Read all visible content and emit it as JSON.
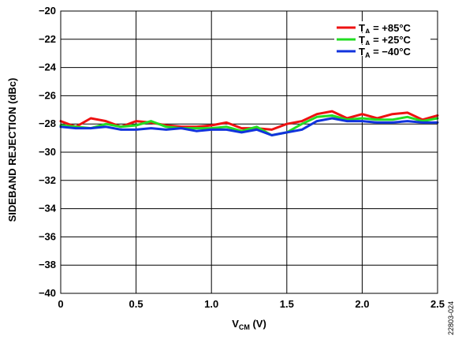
{
  "chart_data": {
    "type": "line",
    "xlabel_main": "V",
    "xlabel_sub": "CM",
    "xlabel_unit": " (V)",
    "ylabel": "SIDEBAND REJECTION (dBc)",
    "xlim": [
      0,
      2.5
    ],
    "ylim": [
      -40,
      -20
    ],
    "xticks": [
      0,
      0.5,
      1.0,
      1.5,
      2.0,
      2.5
    ],
    "xtick_labels": [
      "0",
      "0.5",
      "1.0",
      "1.5",
      "2.0",
      "2.5"
    ],
    "yticks": [
      -20,
      -22,
      -24,
      -26,
      -28,
      -30,
      -32,
      -34,
      -36,
      -38,
      -40
    ],
    "ytick_labels": [
      "−20",
      "−22",
      "−24",
      "−26",
      "−28",
      "−30",
      "−32",
      "−34",
      "−36",
      "−38",
      "−40"
    ],
    "grid": true,
    "legend_position": "top-right",
    "figure_id": "22803-024",
    "x": [
      0,
      0.1,
      0.2,
      0.3,
      0.4,
      0.5,
      0.6,
      0.7,
      0.8,
      0.9,
      1.0,
      1.1,
      1.2,
      1.3,
      1.4,
      1.5,
      1.6,
      1.7,
      1.8,
      1.9,
      2.0,
      2.1,
      2.2,
      2.3,
      2.4,
      2.5
    ],
    "series": [
      {
        "name_prefix": "T",
        "name_sub": "A",
        "name_suffix": " = +85°C",
        "color": "#ee1111",
        "values": [
          -27.8,
          -28.2,
          -27.6,
          -27.8,
          -28.2,
          -27.8,
          -27.9,
          -28.1,
          -28.2,
          -28.2,
          -28.1,
          -27.9,
          -28.3,
          -28.3,
          -28.4,
          -28.0,
          -27.8,
          -27.3,
          -27.1,
          -27.6,
          -27.3,
          -27.6,
          -27.3,
          -27.2,
          -27.7,
          -27.4
        ]
      },
      {
        "name_prefix": "T",
        "name_sub": "A",
        "name_suffix": " = +25°C",
        "color": "#22dd22",
        "values": [
          -28.1,
          -28.2,
          -28.3,
          -28.0,
          -28.2,
          -28.1,
          -27.8,
          -28.2,
          -28.3,
          -28.3,
          -28.3,
          -28.2,
          -28.5,
          -28.2,
          -28.8,
          -28.6,
          -28.0,
          -27.5,
          -27.4,
          -27.7,
          -27.6,
          -27.7,
          -27.7,
          -27.5,
          -27.8,
          -27.6
        ]
      },
      {
        "name_prefix": "T",
        "name_sub": "A",
        "name_suffix": " = −40°C",
        "color": "#1133dd",
        "values": [
          -28.2,
          -28.3,
          -28.3,
          -28.2,
          -28.4,
          -28.4,
          -28.3,
          -28.4,
          -28.3,
          -28.5,
          -28.4,
          -28.4,
          -28.6,
          -28.4,
          -28.8,
          -28.6,
          -28.4,
          -27.8,
          -27.6,
          -27.8,
          -27.8,
          -27.9,
          -27.9,
          -27.8,
          -27.9,
          -27.9
        ]
      }
    ]
  }
}
